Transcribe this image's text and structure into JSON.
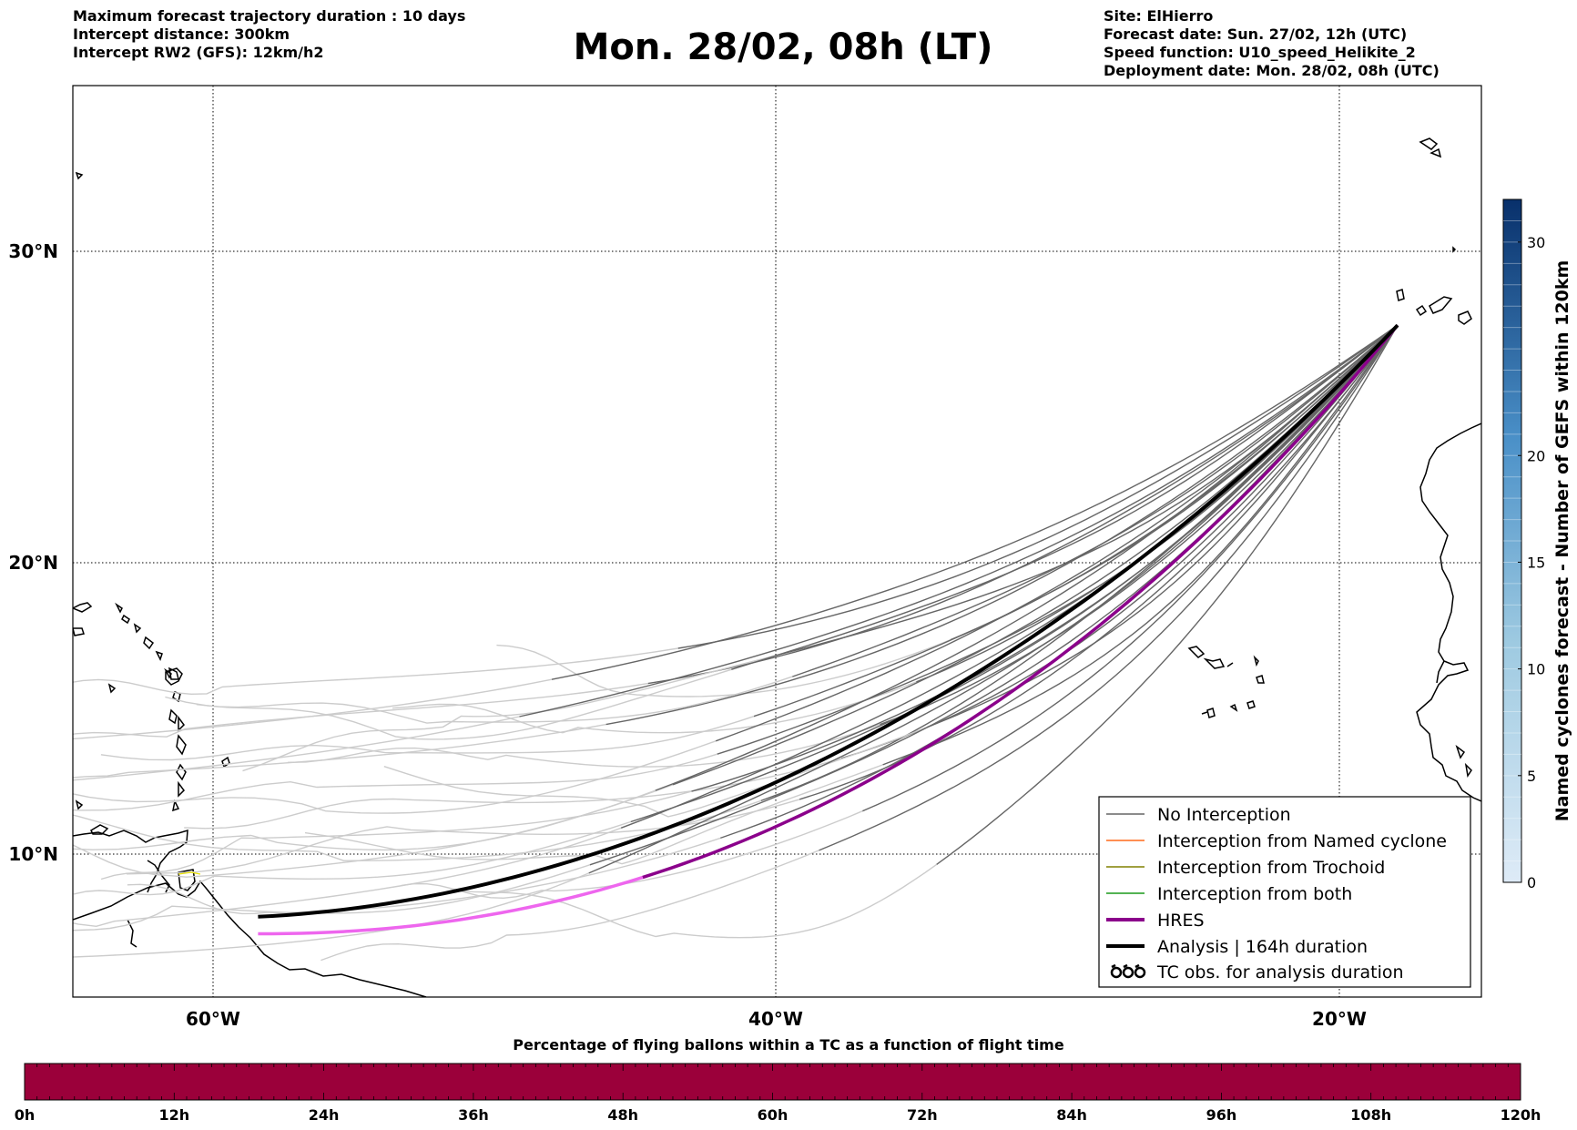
{
  "header_left": {
    "line1": "Maximum forecast trajectory duration : 10 days",
    "line2": "Intercept distance: 300km",
    "line3": "Intercept RW2 (GFS):  12km/h2"
  },
  "title": "Mon. 28/02, 08h (LT)",
  "header_right": {
    "line1": "Site: ElHierro",
    "line2": "Forecast date: Sun. 27/02, 12h (UTC)",
    "line3": "Speed function: U10_speed_Helikite_2",
    "line4": "Deployment date: Mon. 28/02, 08h (UTC)"
  },
  "map": {
    "lon_range": [
      -65,
      15
    ],
    "lat_range": [
      5.4,
      34.7
    ],
    "lat_labels": [
      "30°N",
      "20°N",
      "10°N"
    ],
    "lon_labels": [
      "60°W",
      "40°W",
      "20°W"
    ],
    "colors": {
      "no_interception": "#666666",
      "no_interception_late": "#cccccc",
      "named_cyclone": "#ff6a1a",
      "trochoid": "#808000",
      "both": "#1a9a1a",
      "hres": "#8b008b",
      "hres_late": "#ee66ee",
      "analysis": "#000000"
    }
  },
  "legend": {
    "items": [
      {
        "label": "No Interception",
        "color": "#666666",
        "width": 1.4
      },
      {
        "label": "Interception from Named cyclone",
        "color": "#ff6a1a",
        "width": 1.4
      },
      {
        "label": "Interception from Trochoid",
        "color": "#808000",
        "width": 1.4
      },
      {
        "label": "Interception from both",
        "color": "#1a9a1a",
        "width": 1.4
      },
      {
        "label": "HRES",
        "color": "#8b008b",
        "width": 4
      },
      {
        "label": "Analysis | 164h duration",
        "color": "#000000",
        "width": 4
      }
    ],
    "tc_obs_label": "TC obs. for analysis duration"
  },
  "colorbar": {
    "title": "Named cyclones forecast - Number of GEFS within 120km",
    "ticks": [
      "0",
      "5",
      "10",
      "15",
      "20",
      "30"
    ],
    "tick_values": [
      0,
      5,
      10,
      15,
      20,
      30
    ],
    "range": [
      0,
      32
    ]
  },
  "time_bar": {
    "title": "Percentage of flying ballons within a TC as a function of flight time",
    "color": "#9b003a",
    "ticks": [
      "0h",
      "12h",
      "24h",
      "36h",
      "48h",
      "60h",
      "72h",
      "84h",
      "96h",
      "108h",
      "120h"
    ]
  }
}
